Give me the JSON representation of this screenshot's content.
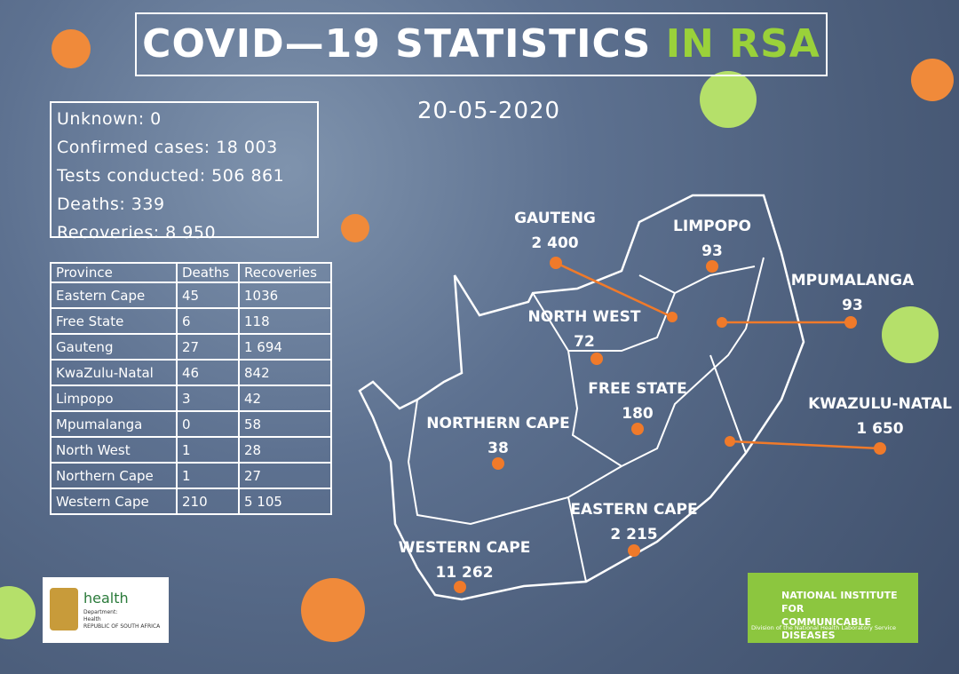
{
  "header": {
    "title": "COVID—19 STATISTICS",
    "title_highlight": "IN RSA",
    "date": "20-05-2020"
  },
  "summary": [
    "Unknown: 0",
    "Confirmed cases: 18 003",
    "Tests conducted: 506 861",
    "Deaths: 339",
    "Recoveries:  8 950"
  ],
  "table": {
    "columns": [
      "Province",
      "Deaths",
      "Recoveries"
    ],
    "rows": [
      [
        "Eastern Cape",
        "45",
        "1036"
      ],
      [
        "Free State",
        "6",
        "118"
      ],
      [
        "Gauteng",
        "27",
        "1 694"
      ],
      [
        "KwaZulu-Natal",
        "46",
        "842"
      ],
      [
        "Limpopo",
        "3",
        "42"
      ],
      [
        "Mpumalanga",
        "0",
        "58"
      ],
      [
        "North West",
        "1",
        "28"
      ],
      [
        "Northern Cape",
        "1",
        "27"
      ],
      [
        "Western Cape",
        "210",
        "5 105"
      ]
    ]
  },
  "map": {
    "regions": [
      {
        "name": "GAUTENG",
        "cases": "2 400"
      },
      {
        "name": "LIMPOPO",
        "cases": "93"
      },
      {
        "name": "MPUMALANGA",
        "cases": "93"
      },
      {
        "name": "NORTH WEST",
        "cases": "72"
      },
      {
        "name": "FREE STATE",
        "cases": "180"
      },
      {
        "name": "NORTHERN CAPE",
        "cases": "38"
      },
      {
        "name": "KWAZULU-NATAL",
        "cases": "1 650"
      },
      {
        "name": "EASTERN CAPE",
        "cases": "2 215"
      },
      {
        "name": "WESTERN CAPE",
        "cases": "11 262"
      }
    ]
  },
  "logos": {
    "health": {
      "name": "health",
      "line1": "Department:",
      "line2": "Health",
      "line3": "REPUBLIC OF SOUTH AFRICA"
    },
    "nicd": {
      "line1": "NATIONAL INSTITUTE FOR",
      "line2": "COMMUNICABLE DISEASES",
      "line3": "Division of the National Health Laboratory Service"
    }
  }
}
